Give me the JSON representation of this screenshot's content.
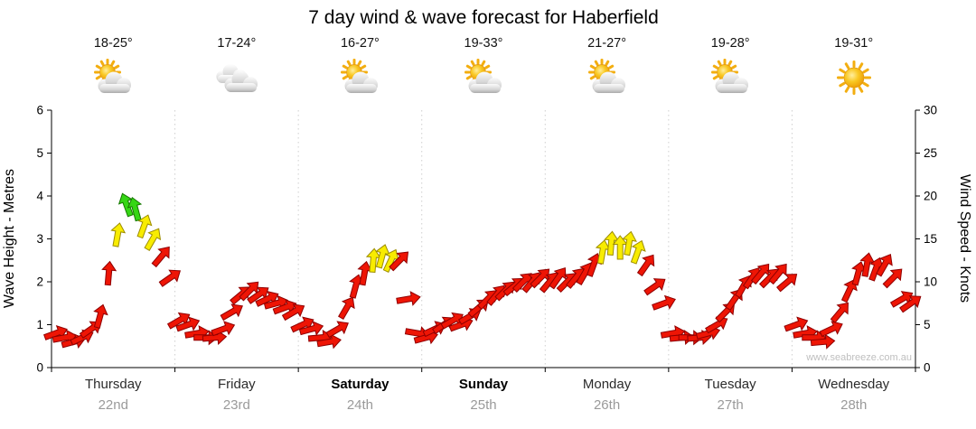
{
  "chart_data": {
    "type": "wind-arrows",
    "title": "7 day wind & wave forecast for Haberfield",
    "watermark": "www.seabreeze.com.au",
    "left_axis": {
      "label": "Wave Height - Metres",
      "min": 0,
      "max": 6,
      "ticks": [
        0,
        1,
        2,
        3,
        4,
        5,
        6
      ]
    },
    "right_axis": {
      "label": "Wind Speed - Knots",
      "min": 0,
      "max": 30,
      "ticks": [
        0,
        5,
        10,
        15,
        20,
        25,
        30
      ]
    },
    "arrow_colors": {
      "red": "#ee1505",
      "yellow": "#f8ec00",
      "green": "#35d615"
    },
    "arrow_outlines": {
      "red": "#8f0000",
      "yellow": "#9c8c00",
      "green": "#157800"
    },
    "wind": [
      {
        "day": "Thursday",
        "knots": [
          4,
          3.5,
          3,
          3.5,
          4.5,
          6,
          11,
          15.5,
          19,
          18.5,
          16.5,
          15,
          13,
          10.5
        ],
        "dirs": [
          70,
          80,
          75,
          65,
          55,
          15,
          5,
          10,
          -20,
          -15,
          20,
          30,
          40,
          55
        ],
        "colors": [
          "red",
          "red",
          "red",
          "red",
          "red",
          "red",
          "red",
          "yellow",
          "green",
          "green",
          "yellow",
          "yellow",
          "red",
          "red"
        ]
      },
      {
        "day": "Friday",
        "knots": [
          5.5,
          5,
          4,
          3.5,
          3.5,
          4.5,
          6.5,
          8.5,
          9,
          8.5,
          8,
          7.5,
          7,
          6.5
        ],
        "dirs": [
          60,
          70,
          80,
          90,
          85,
          70,
          60,
          50,
          45,
          55,
          65,
          75,
          70,
          60
        ],
        "colors": [
          "red",
          "red",
          "red",
          "red",
          "red",
          "red",
          "red",
          "red",
          "red",
          "red",
          "red",
          "red",
          "red",
          "red"
        ]
      },
      {
        "day": "Saturday",
        "knots": [
          5,
          4.5,
          3.5,
          3,
          4.5,
          7,
          9.5,
          11,
          12.5,
          13,
          12.5,
          12.5,
          8,
          4
        ],
        "dirs": [
          65,
          75,
          85,
          80,
          60,
          30,
          15,
          10,
          5,
          15,
          25,
          45,
          80,
          100
        ],
        "colors": [
          "red",
          "red",
          "red",
          "red",
          "red",
          "red",
          "red",
          "red",
          "yellow",
          "yellow",
          "yellow",
          "red",
          "red",
          "red"
        ]
      },
      {
        "day": "Sunday",
        "knots": [
          3.5,
          4.5,
          5,
          5.5,
          5,
          6,
          7,
          8,
          8.5,
          9,
          9.5,
          10,
          10,
          10.5
        ],
        "dirs": [
          75,
          65,
          55,
          60,
          70,
          60,
          50,
          45,
          40,
          45,
          50,
          45,
          40,
          45
        ],
        "colors": [
          "red",
          "red",
          "red",
          "red",
          "red",
          "red",
          "red",
          "red",
          "red",
          "red",
          "red",
          "red",
          "red",
          "red"
        ]
      },
      {
        "day": "Monday",
        "knots": [
          10,
          10.5,
          10,
          10.5,
          11,
          12,
          13.5,
          14.5,
          14,
          14.5,
          13.5,
          12,
          9.5,
          7.5
        ],
        "dirs": [
          40,
          35,
          45,
          40,
          30,
          20,
          10,
          5,
          0,
          10,
          20,
          35,
          55,
          70
        ],
        "colors": [
          "red",
          "red",
          "red",
          "red",
          "red",
          "red",
          "yellow",
          "yellow",
          "yellow",
          "yellow",
          "yellow",
          "red",
          "red",
          "red"
        ]
      },
      {
        "day": "Tuesday",
        "knots": [
          4,
          3.5,
          3.5,
          3.5,
          4,
          5,
          6.5,
          8,
          9.5,
          10.5,
          11,
          10.5,
          11,
          10
        ],
        "dirs": [
          80,
          85,
          90,
          85,
          75,
          60,
          45,
          35,
          30,
          35,
          40,
          45,
          40,
          50
        ],
        "colors": [
          "red",
          "red",
          "red",
          "red",
          "red",
          "red",
          "red",
          "red",
          "red",
          "red",
          "red",
          "red",
          "red",
          "red"
        ]
      },
      {
        "day": "Wednesday",
        "knots": [
          5,
          4,
          3.5,
          3,
          4.5,
          6.5,
          9,
          11,
          12,
          11.5,
          12,
          10.5,
          8,
          7.5
        ],
        "dirs": [
          70,
          80,
          90,
          85,
          65,
          40,
          25,
          15,
          10,
          20,
          30,
          45,
          60,
          55
        ],
        "colors": [
          "red",
          "red",
          "red",
          "red",
          "red",
          "red",
          "red",
          "red",
          "red",
          "red",
          "red",
          "red",
          "red",
          "red"
        ]
      }
    ]
  },
  "days": [
    {
      "name": "Thursday",
      "date": "22nd",
      "temp": "18-25°",
      "icon": "partly",
      "bold": false
    },
    {
      "name": "Friday",
      "date": "23rd",
      "temp": "17-24°",
      "icon": "cloudy",
      "bold": false
    },
    {
      "name": "Saturday",
      "date": "24th",
      "temp": "16-27°",
      "icon": "partly",
      "bold": true
    },
    {
      "name": "Sunday",
      "date": "25th",
      "temp": "19-33°",
      "icon": "partly",
      "bold": true
    },
    {
      "name": "Monday",
      "date": "26th",
      "temp": "21-27°",
      "icon": "partly",
      "bold": false
    },
    {
      "name": "Tuesday",
      "date": "27th",
      "temp": "19-28°",
      "icon": "partly",
      "bold": false
    },
    {
      "name": "Wednesday",
      "date": "28th",
      "temp": "19-31°",
      "icon": "sunny",
      "bold": false
    }
  ]
}
